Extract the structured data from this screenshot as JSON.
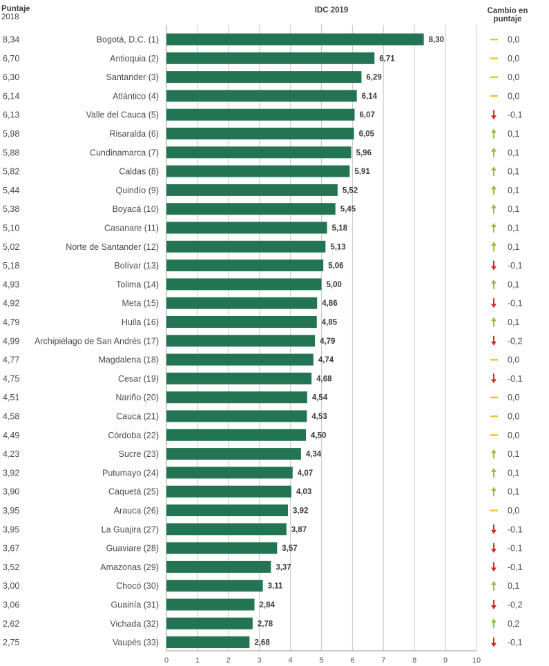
{
  "header": {
    "left_title": "Puntaje",
    "left_subtitle": "2018",
    "chart_title": "IDC 2019",
    "right_title_line1": "Cambio en",
    "right_title_line2": "puntaje"
  },
  "colors": {
    "bar": "#237452",
    "up": "#94c23e",
    "down": "#d22a2a",
    "flat": "#f0c22a",
    "grid": "#c8c8c8"
  },
  "chart_data": {
    "type": "bar",
    "orientation": "horizontal",
    "title": "IDC 2019",
    "xlim": [
      0,
      10
    ],
    "ticks": [
      "0",
      "1",
      "2",
      "3",
      "4",
      "5",
      "6",
      "7",
      "8",
      "9",
      "10"
    ],
    "grid": true,
    "rows": [
      {
        "prev": "8,34",
        "label": "Bogotá, D.C.",
        "rank": "(1)",
        "value": 8.3,
        "value_label": "8,30",
        "change": "0,0",
        "trend": "flat"
      },
      {
        "prev": "6,70",
        "label": "Antioquia",
        "rank": "(2)",
        "value": 6.71,
        "value_label": "6,71",
        "change": "0,0",
        "trend": "flat"
      },
      {
        "prev": "6,30",
        "label": "Santander",
        "rank": "(3)",
        "value": 6.29,
        "value_label": "6,29",
        "change": "0,0",
        "trend": "flat"
      },
      {
        "prev": "6,14",
        "label": "Atlántico",
        "rank": "(4)",
        "value": 6.14,
        "value_label": "6,14",
        "change": "0,0",
        "trend": "flat"
      },
      {
        "prev": "6,13",
        "label": "Valle del Cauca",
        "rank": "(5)",
        "value": 6.07,
        "value_label": "6,07",
        "change": "-0,1",
        "trend": "down"
      },
      {
        "prev": "5,98",
        "label": "Risaralda",
        "rank": "(6)",
        "value": 6.05,
        "value_label": "6,05",
        "change": "0,1",
        "trend": "up"
      },
      {
        "prev": "5,88",
        "label": "Cundinamarca",
        "rank": "(7)",
        "value": 5.96,
        "value_label": "5,96",
        "change": "0,1",
        "trend": "up"
      },
      {
        "prev": "5,82",
        "label": "Caldas",
        "rank": "(8)",
        "value": 5.91,
        "value_label": "5,91",
        "change": "0,1",
        "trend": "up"
      },
      {
        "prev": "5,44",
        "label": "Quindío",
        "rank": "(9)",
        "value": 5.52,
        "value_label": "5,52",
        "change": "0,1",
        "trend": "up"
      },
      {
        "prev": "5,38",
        "label": "Boyacá",
        "rank": "(10)",
        "value": 5.45,
        "value_label": "5,45",
        "change": "0,1",
        "trend": "up"
      },
      {
        "prev": "5,10",
        "label": "Casanare",
        "rank": "(11)",
        "value": 5.18,
        "value_label": "5,18",
        "change": "0,1",
        "trend": "up"
      },
      {
        "prev": "5,02",
        "label": "Norte de Santander",
        "rank": "(12)",
        "value": 5.13,
        "value_label": "5,13",
        "change": "0,1",
        "trend": "up"
      },
      {
        "prev": "5,18",
        "label": "Bolívar",
        "rank": "(13)",
        "value": 5.06,
        "value_label": "5,06",
        "change": "-0,1",
        "trend": "down"
      },
      {
        "prev": "4,93",
        "label": "Tolima",
        "rank": "(14)",
        "value": 5.0,
        "value_label": "5,00",
        "change": "0,1",
        "trend": "up"
      },
      {
        "prev": "4,92",
        "label": "Meta",
        "rank": "(15)",
        "value": 4.86,
        "value_label": "4,86",
        "change": "-0,1",
        "trend": "down"
      },
      {
        "prev": "4,79",
        "label": "Huila",
        "rank": "(16)",
        "value": 4.85,
        "value_label": "4,85",
        "change": "0,1",
        "trend": "up"
      },
      {
        "prev": "4,99",
        "label": "Archipiélago de San Andrés",
        "rank": "(17)",
        "value": 4.79,
        "value_label": "4,79",
        "change": "-0,2",
        "trend": "down"
      },
      {
        "prev": "4,77",
        "label": "Magdalena",
        "rank": "(18)",
        "value": 4.74,
        "value_label": "4,74",
        "change": "0,0",
        "trend": "flat"
      },
      {
        "prev": "4,75",
        "label": "Cesar",
        "rank": "(19)",
        "value": 4.68,
        "value_label": "4,68",
        "change": "-0,1",
        "trend": "down"
      },
      {
        "prev": "4,51",
        "label": "Nariño",
        "rank": "(20)",
        "value": 4.54,
        "value_label": "4,54",
        "change": "0,0",
        "trend": "flat"
      },
      {
        "prev": "4,58",
        "label": "Cauca",
        "rank": "(21)",
        "value": 4.53,
        "value_label": "4,53",
        "change": "0,0",
        "trend": "flat"
      },
      {
        "prev": "4,49",
        "label": "Córdoba",
        "rank": "(22)",
        "value": 4.5,
        "value_label": "4,50",
        "change": "0,0",
        "trend": "flat"
      },
      {
        "prev": "4,23",
        "label": "Sucre",
        "rank": "(23)",
        "value": 4.34,
        "value_label": "4,34",
        "change": "0,1",
        "trend": "up"
      },
      {
        "prev": "3,92",
        "label": "Putumayo",
        "rank": "(24)",
        "value": 4.07,
        "value_label": "4,07",
        "change": "0,1",
        "trend": "up"
      },
      {
        "prev": "3,90",
        "label": "Caquetá",
        "rank": "(25)",
        "value": 4.03,
        "value_label": "4,03",
        "change": "0,1",
        "trend": "up"
      },
      {
        "prev": "3,95",
        "label": "Arauca",
        "rank": "(26)",
        "value": 3.92,
        "value_label": "3,92",
        "change": "0,0",
        "trend": "flat"
      },
      {
        "prev": "3,95",
        "label": "La Guajira",
        "rank": "(27)",
        "value": 3.87,
        "value_label": "3,87",
        "change": "-0,1",
        "trend": "down"
      },
      {
        "prev": "3,67",
        "label": "Guaviare",
        "rank": "(28)",
        "value": 3.57,
        "value_label": "3,57",
        "change": "-0,1",
        "trend": "down"
      },
      {
        "prev": "3,52",
        "label": "Amazonas",
        "rank": "(29)",
        "value": 3.37,
        "value_label": "3,37",
        "change": "-0,1",
        "trend": "down"
      },
      {
        "prev": "3,00",
        "label": "Chocó",
        "rank": "(30)",
        "value": 3.11,
        "value_label": "3,11",
        "change": "0,1",
        "trend": "up"
      },
      {
        "prev": "3,06",
        "label": "Guainía",
        "rank": "(31)",
        "value": 2.84,
        "value_label": "2,84",
        "change": "-0,2",
        "trend": "down"
      },
      {
        "prev": "2,62",
        "label": "Vichada",
        "rank": "(32)",
        "value": 2.78,
        "value_label": "2,78",
        "change": "0,2",
        "trend": "up"
      },
      {
        "prev": "2,75",
        "label": "Vaupés",
        "rank": "(33)",
        "value": 2.68,
        "value_label": "2,68",
        "change": "-0,1",
        "trend": "down"
      }
    ]
  }
}
